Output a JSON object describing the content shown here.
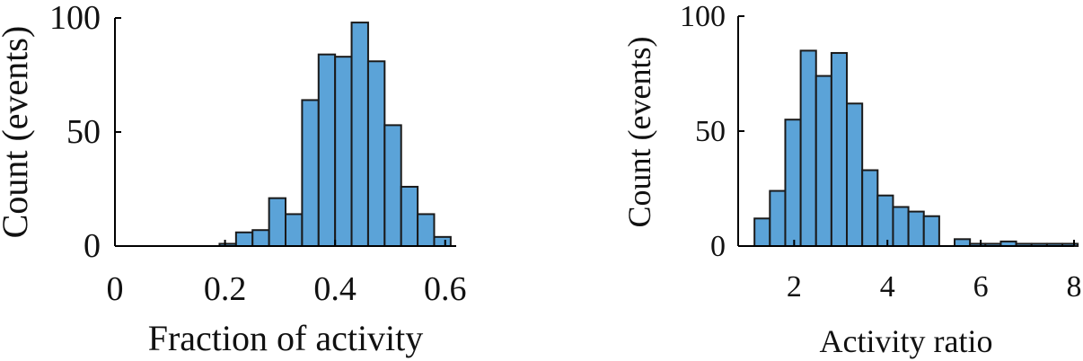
{
  "chart_data": [
    {
      "type": "bar",
      "subtype": "histogram",
      "title": "",
      "xlabel": "Fraction of activity",
      "ylabel": "Count (events)",
      "xlim": [
        0,
        0.62
      ],
      "ylim": [
        0,
        100
      ],
      "x_ticks": [
        0,
        0.2,
        0.4,
        0.6
      ],
      "x_tick_labels": [
        "0",
        "0.2",
        "0.4",
        "0.6"
      ],
      "y_ticks": [
        0,
        50,
        100
      ],
      "y_tick_labels": [
        "0",
        "50",
        "100"
      ],
      "bin_width": 0.03,
      "bin_edges_start": [
        0.19,
        0.22,
        0.25,
        0.28,
        0.31,
        0.34,
        0.37,
        0.4,
        0.43,
        0.46,
        0.49,
        0.52,
        0.55,
        0.58
      ],
      "values": [
        1,
        6,
        7,
        21,
        14,
        64,
        84,
        83,
        98,
        81,
        53,
        26,
        14,
        4
      ],
      "bar_color": "#5ba3d8",
      "grid": false
    },
    {
      "type": "bar",
      "subtype": "histogram",
      "title": "",
      "xlabel": "Activity ratio",
      "ylabel": "Count (events)",
      "xlim": [
        0.8,
        8
      ],
      "ylim": [
        0,
        100
      ],
      "x_ticks": [
        2,
        4,
        6,
        8
      ],
      "x_tick_labels": [
        "2",
        "4",
        "6",
        "8"
      ],
      "y_ticks": [
        0,
        50,
        100
      ],
      "y_tick_labels": [
        "0",
        "50",
        "100"
      ],
      "bin_width": 0.33,
      "bin_edges_start": [
        1.15,
        1.48,
        1.81,
        2.14,
        2.47,
        2.8,
        3.13,
        3.46,
        3.79,
        4.12,
        4.45,
        4.78,
        5.11,
        5.44,
        5.77,
        6.1,
        6.43,
        6.76,
        7.09,
        7.42,
        7.75
      ],
      "values": [
        12,
        24,
        55,
        85,
        74,
        84,
        62,
        33,
        22,
        17,
        15,
        13,
        0,
        3,
        1,
        1,
        2,
        1,
        1,
        1,
        1
      ],
      "bar_color": "#5ba3d8",
      "grid": false
    }
  ]
}
